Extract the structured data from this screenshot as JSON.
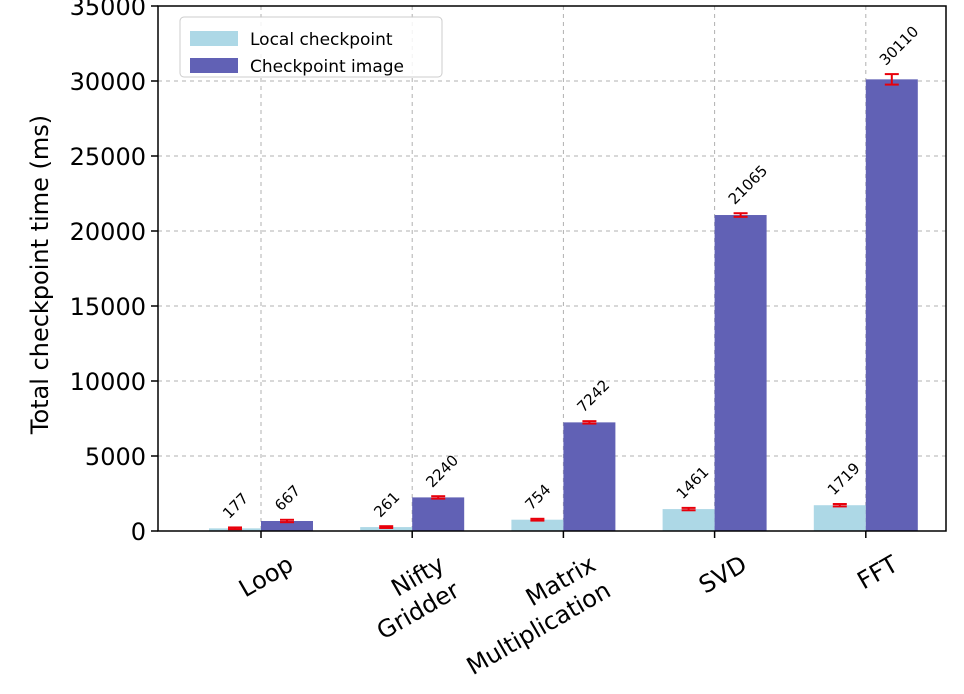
{
  "chart_data": {
    "type": "bar",
    "title": "",
    "xlabel": "",
    "ylabel": "Total checkpoint time (ms)",
    "ylim": [
      0,
      35000
    ],
    "yticks": [
      0,
      5000,
      10000,
      15000,
      20000,
      25000,
      30000,
      35000
    ],
    "grid": true,
    "legend_position": "top-left",
    "categories": [
      [
        "Loop"
      ],
      [
        "Nifty",
        "Gridder"
      ],
      [
        "Matrix",
        "Multiplication"
      ],
      [
        "SVD"
      ],
      [
        "FFT"
      ]
    ],
    "series": [
      {
        "name": "Local checkpoint",
        "color": "#add8e6",
        "values": [
          177,
          261,
          754,
          1461,
          1719
        ],
        "labels": [
          "177",
          "261",
          "754",
          "1461",
          "1719"
        ],
        "errors": [
          60,
          60,
          60,
          80,
          80
        ]
      },
      {
        "name": "Checkpoint image",
        "color": "#6161b5",
        "values": [
          667,
          2240,
          7242,
          21065,
          30110
        ],
        "labels": [
          "667",
          "2240",
          "7242",
          "21065",
          "30110"
        ],
        "errors": [
          80,
          80,
          80,
          120,
          350
        ]
      }
    ],
    "error_color": "#e8000b"
  }
}
